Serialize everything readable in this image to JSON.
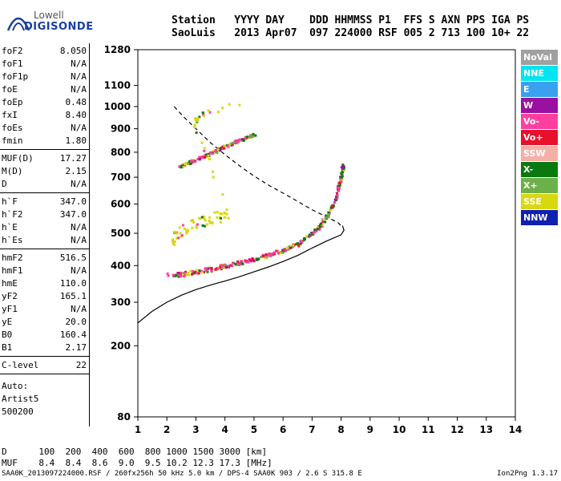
{
  "logo": {
    "line1": "Lowell",
    "line2": "DIGISONDE"
  },
  "header": {
    "labels": [
      "Station",
      "YYYY",
      "DAY",
      "DDD",
      "HHMMSS",
      "P1",
      "FFS",
      "S",
      "AXN",
      "PPS",
      "IGA",
      "PS"
    ],
    "values": [
      "SaoLuis",
      "2013",
      "Apr07",
      "097",
      "224000",
      "RSF",
      "005",
      "2",
      "713",
      "100",
      "10+",
      "22"
    ]
  },
  "params": {
    "group1": [
      {
        "name": "foF2",
        "value": "8.050"
      },
      {
        "name": "foF1",
        "value": "N/A"
      },
      {
        "name": "foF1p",
        "value": "N/A"
      },
      {
        "name": "foE",
        "value": "N/A"
      },
      {
        "name": "foEp",
        "value": "0.48"
      },
      {
        "name": "fxI",
        "value": "8.40"
      },
      {
        "name": "foEs",
        "value": "N/A"
      },
      {
        "name": "fmin",
        "value": "1.80"
      }
    ],
    "group2": [
      {
        "name": "MUF(D)",
        "value": "17.27"
      },
      {
        "name": "M(D)",
        "value": "2.15"
      },
      {
        "name": "D",
        "value": "N/A"
      }
    ],
    "group3": [
      {
        "name": "h`F",
        "value": "347.0"
      },
      {
        "name": "h`F2",
        "value": "347.0"
      },
      {
        "name": "h`E",
        "value": "N/A"
      },
      {
        "name": "h`Es",
        "value": "N/A"
      }
    ],
    "group4": [
      {
        "name": "hmF2",
        "value": "516.5"
      },
      {
        "name": "hmF1",
        "value": "N/A"
      },
      {
        "name": "hmE",
        "value": "110.0"
      },
      {
        "name": "yF2",
        "value": "165.1"
      },
      {
        "name": "yF1",
        "value": "N/A"
      },
      {
        "name": "yE",
        "value": "20.0"
      },
      {
        "name": "B0",
        "value": "160.4"
      },
      {
        "name": "B1",
        "value": "2.17"
      }
    ],
    "group5": [
      {
        "name": "C-level",
        "value": "22"
      }
    ],
    "auto": [
      "Auto:",
      "Artist5",
      "500200"
    ]
  },
  "legend": [
    {
      "label": "NoVal",
      "color": "#a0a0a0"
    },
    {
      "label": "NNE",
      "color": "#00e5f0"
    },
    {
      "label": "E",
      "color": "#3aa0f0"
    },
    {
      "label": "W",
      "color": "#9a10a0"
    },
    {
      "label": "Vo-",
      "color": "#ff3fa0"
    },
    {
      "label": "Vo+",
      "color": "#e8102a"
    },
    {
      "label": "SSW",
      "color": "#f4b0a8"
    },
    {
      "label": "X-",
      "color": "#0a7a10"
    },
    {
      "label": "X+",
      "color": "#6cb04a"
    },
    {
      "label": "SSE",
      "color": "#d8d810"
    },
    {
      "label": "NNW",
      "color": "#1020b0"
    }
  ],
  "muf_table": {
    "row1_label": "D",
    "row1_values": [
      "100",
      "200",
      "400",
      "600",
      "800",
      "1000",
      "1500",
      "3000"
    ],
    "row1_unit": "[km]",
    "row2_label": "MUF",
    "row2_values": [
      "8.4",
      "8.4",
      "8.6",
      "9.0",
      "9.5",
      "10.2",
      "12.3",
      "17.3"
    ],
    "row2_unit": "[MHz]"
  },
  "footer": "SAA0K_2013097224000.RSF / 260fx256h 50 kHz 5.0 km / DPS-4 SAA0K 903 / 2.6 S 315.8 E",
  "version": "Ion2Png 1.3.17",
  "chart_data": {
    "type": "scatter",
    "xlim": [
      1,
      14
    ],
    "ylim": [
      80,
      1280
    ],
    "x_scale": "linear",
    "y_scale": "sqrt",
    "xticks": [
      1,
      2,
      3,
      4,
      5,
      6,
      7,
      8,
      9,
      10,
      11,
      12,
      13,
      14
    ],
    "yticks": [
      80,
      200,
      300,
      400,
      500,
      600,
      700,
      800,
      900,
      1000,
      1100,
      1280
    ],
    "series": [
      {
        "kind": "ordinary_trace",
        "points": [
          [
            2.0,
            375
          ],
          [
            2.5,
            378
          ],
          [
            3.0,
            385
          ],
          [
            3.5,
            393
          ],
          [
            4.0,
            403
          ],
          [
            4.5,
            412
          ],
          [
            5.0,
            422
          ],
          [
            5.5,
            435
          ],
          [
            6.0,
            450
          ],
          [
            6.5,
            470
          ],
          [
            7.0,
            505
          ],
          [
            7.3,
            535
          ],
          [
            7.6,
            580
          ],
          [
            7.8,
            630
          ],
          [
            7.95,
            690
          ],
          [
            8.05,
            760
          ]
        ]
      },
      {
        "kind": "second_hop",
        "points": [
          [
            2.4,
            745
          ],
          [
            2.8,
            765
          ],
          [
            3.2,
            785
          ],
          [
            3.6,
            805
          ],
          [
            4.0,
            830
          ],
          [
            4.4,
            850
          ],
          [
            4.8,
            870
          ],
          [
            5.0,
            880
          ]
        ]
      },
      {
        "kind": "vertical_spread",
        "points": [
          [
            2.1,
            470
          ],
          [
            2.3,
            500
          ],
          [
            2.6,
            520
          ],
          [
            3.0,
            540
          ],
          [
            3.4,
            550
          ],
          [
            3.8,
            560
          ],
          [
            4.1,
            570
          ],
          [
            2.9,
            930
          ],
          [
            3.1,
            960
          ],
          [
            4.6,
            1030
          ]
        ]
      }
    ],
    "curves": [
      {
        "kind": "profile_solid",
        "points": [
          [
            1.0,
            250
          ],
          [
            1.5,
            278
          ],
          [
            2.0,
            300
          ],
          [
            2.5,
            318
          ],
          [
            3.0,
            333
          ],
          [
            3.5,
            345
          ],
          [
            4.0,
            356
          ],
          [
            4.5,
            368
          ],
          [
            5.0,
            382
          ],
          [
            5.5,
            396
          ],
          [
            6.0,
            412
          ],
          [
            6.5,
            430
          ],
          [
            7.0,
            453
          ],
          [
            7.5,
            475
          ],
          [
            8.0,
            495
          ],
          [
            8.1,
            510
          ],
          [
            8.05,
            525
          ]
        ]
      },
      {
        "kind": "profile_dashed",
        "points": [
          [
            2.25,
            1000
          ],
          [
            2.6,
            950
          ],
          [
            3.0,
            900
          ],
          [
            3.5,
            840
          ],
          [
            4.0,
            790
          ],
          [
            4.5,
            745
          ],
          [
            5.0,
            705
          ],
          [
            5.5,
            670
          ],
          [
            6.0,
            640
          ],
          [
            6.5,
            610
          ],
          [
            7.0,
            580
          ],
          [
            7.5,
            555
          ],
          [
            7.9,
            535
          ],
          [
            8.05,
            520
          ]
        ]
      }
    ]
  }
}
